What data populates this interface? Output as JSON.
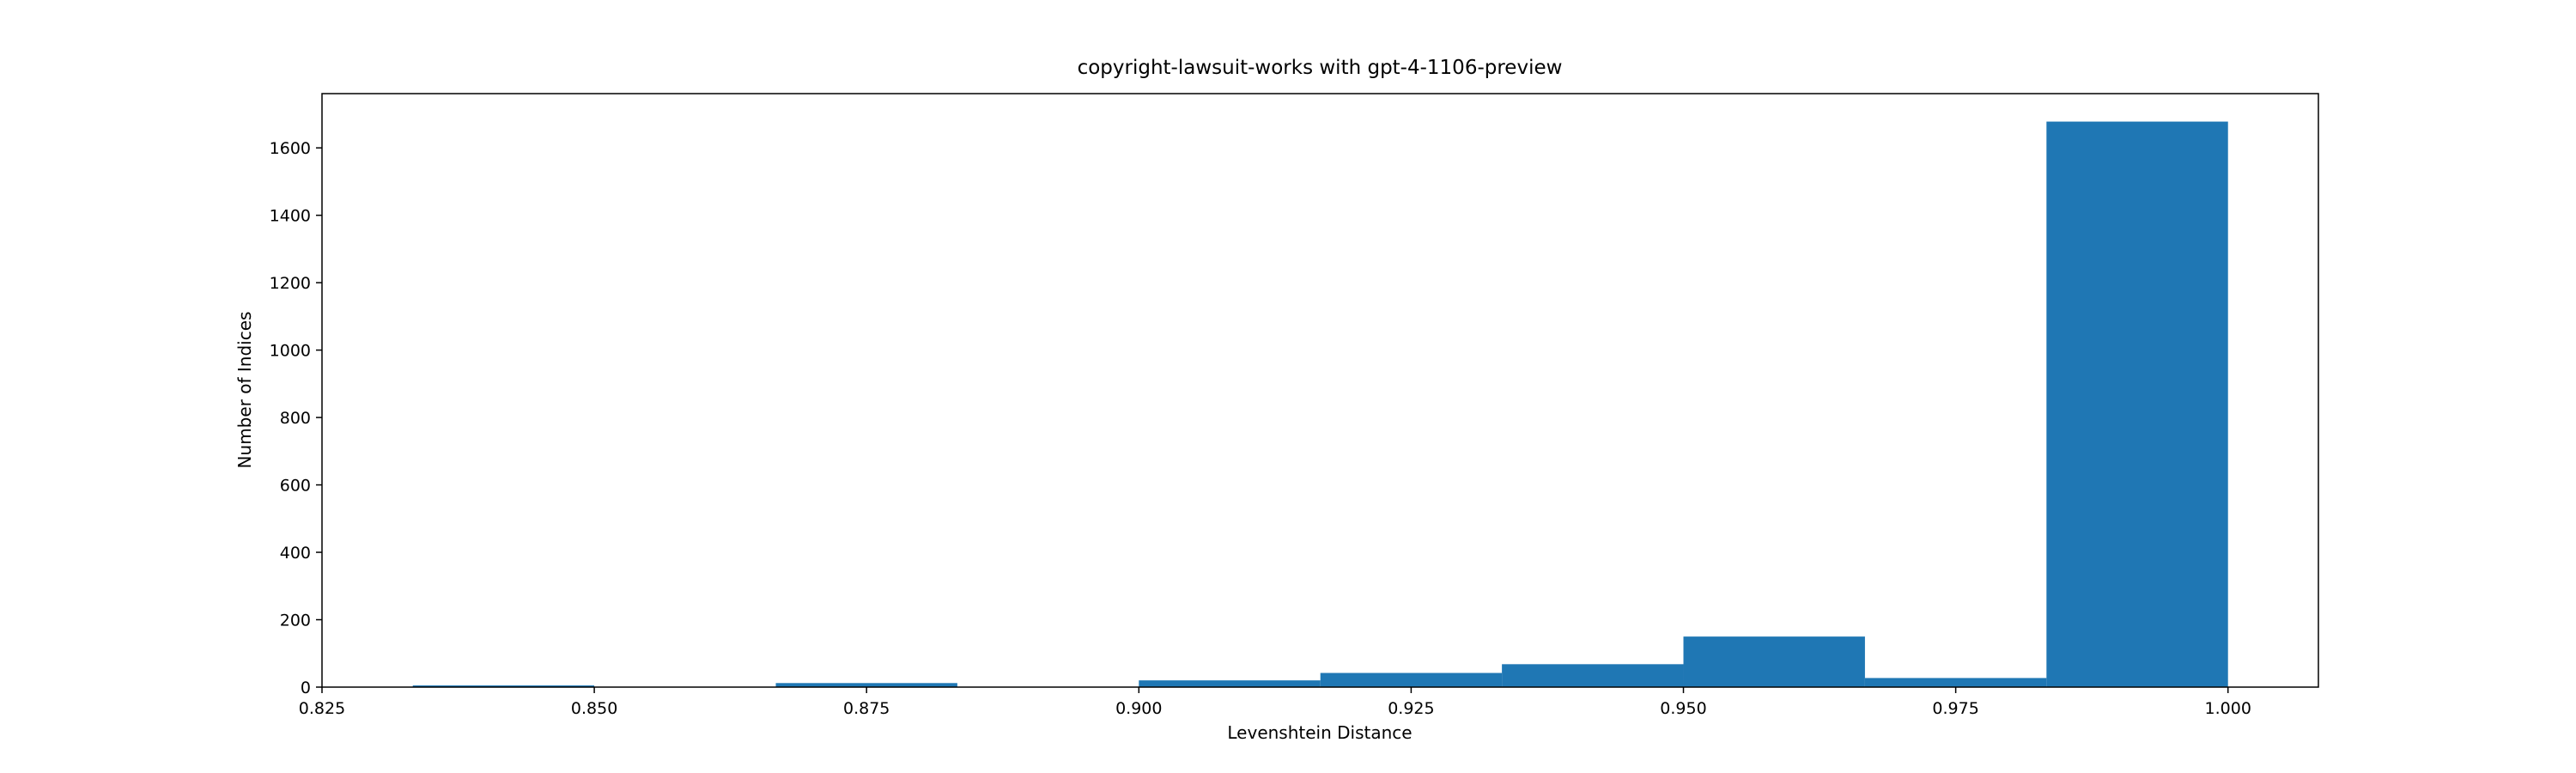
{
  "chart_data": {
    "type": "histogram",
    "title": "copyright-lawsuit-works with gpt-4-1106-preview",
    "x_label": "Levenshtein Distance",
    "y_label": "Number of Indices",
    "bins": [
      0.8333333,
      0.85,
      0.8666667,
      0.8833333,
      0.9,
      0.9166667,
      0.9333333,
      0.95,
      0.9666667,
      0.9833333,
      1.0
    ],
    "values": [
      5,
      0,
      12,
      0,
      20,
      42,
      68,
      150,
      27,
      1678
    ],
    "color": "#1f77b4",
    "xlim": [
      0.825,
      1.0083
    ],
    "ylim": [
      0,
      1761
    ],
    "xticks": [
      0.825,
      {
        "value": 0.85,
        "label": "0.850"
      },
      0.875,
      {
        "value": 0.9,
        "label": "0.900"
      },
      0.925,
      {
        "value": 0.95,
        "label": "0.950"
      },
      0.975,
      {
        "value": 1.0,
        "label": "1.000"
      }
    ],
    "yticks": [
      0,
      200,
      400,
      600,
      800,
      1000,
      1200,
      1400,
      1600
    ]
  }
}
